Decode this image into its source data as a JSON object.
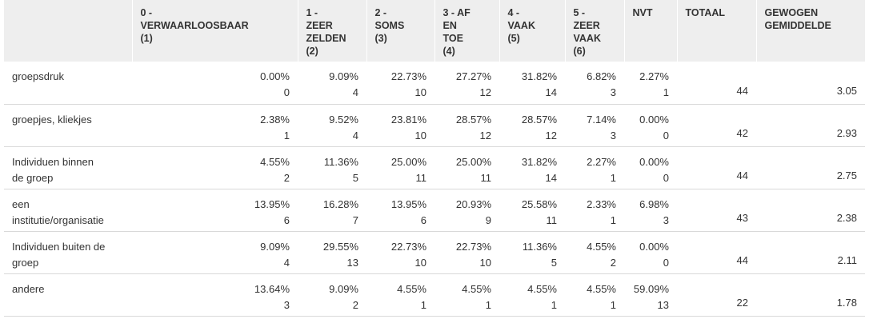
{
  "table": {
    "headers": [
      {
        "lines": [
          ""
        ]
      },
      {
        "lines": [
          "0 -",
          "VERWAARLOOSBAAR",
          "(1)"
        ]
      },
      {
        "lines": [
          "1 -",
          "ZEER",
          "ZELDEN",
          "(2)"
        ]
      },
      {
        "lines": [
          "2 -",
          "SOMS",
          "(3)"
        ]
      },
      {
        "lines": [
          "3 - AF",
          "EN",
          "TOE",
          "(4)"
        ]
      },
      {
        "lines": [
          "4 -",
          "VAAK",
          "(5)"
        ]
      },
      {
        "lines": [
          "5 -",
          "ZEER",
          "VAAK",
          "(6)"
        ]
      },
      {
        "lines": [
          "NVT"
        ]
      },
      {
        "lines": [
          "TOTAAL"
        ]
      },
      {
        "lines": [
          "GEWOGEN",
          "GEMIDDELDE"
        ]
      }
    ],
    "rows": [
      {
        "label": [
          "groepsdruk"
        ],
        "cells": [
          {
            "pct": "0.00%",
            "count": "0"
          },
          {
            "pct": "9.09%",
            "count": "4"
          },
          {
            "pct": "22.73%",
            "count": "10"
          },
          {
            "pct": "27.27%",
            "count": "12"
          },
          {
            "pct": "31.82%",
            "count": "14"
          },
          {
            "pct": "6.82%",
            "count": "3"
          },
          {
            "pct": "2.27%",
            "count": "1"
          }
        ],
        "total": "44",
        "average": "3.05"
      },
      {
        "label": [
          "groepjes, kliekjes"
        ],
        "cells": [
          {
            "pct": "2.38%",
            "count": "1"
          },
          {
            "pct": "9.52%",
            "count": "4"
          },
          {
            "pct": "23.81%",
            "count": "10"
          },
          {
            "pct": "28.57%",
            "count": "12"
          },
          {
            "pct": "28.57%",
            "count": "12"
          },
          {
            "pct": "7.14%",
            "count": "3"
          },
          {
            "pct": "0.00%",
            "count": "0"
          }
        ],
        "total": "42",
        "average": "2.93"
      },
      {
        "label": [
          "Individuen binnen",
          "de groep"
        ],
        "cells": [
          {
            "pct": "4.55%",
            "count": "2"
          },
          {
            "pct": "11.36%",
            "count": "5"
          },
          {
            "pct": "25.00%",
            "count": "11"
          },
          {
            "pct": "25.00%",
            "count": "11"
          },
          {
            "pct": "31.82%",
            "count": "14"
          },
          {
            "pct": "2.27%",
            "count": "1"
          },
          {
            "pct": "0.00%",
            "count": "0"
          }
        ],
        "total": "44",
        "average": "2.75"
      },
      {
        "label": [
          "een",
          "institutie/organisatie"
        ],
        "cells": [
          {
            "pct": "13.95%",
            "count": "6"
          },
          {
            "pct": "16.28%",
            "count": "7"
          },
          {
            "pct": "13.95%",
            "count": "6"
          },
          {
            "pct": "20.93%",
            "count": "9"
          },
          {
            "pct": "25.58%",
            "count": "11"
          },
          {
            "pct": "2.33%",
            "count": "1"
          },
          {
            "pct": "6.98%",
            "count": "3"
          }
        ],
        "total": "43",
        "average": "2.38"
      },
      {
        "label": [
          "Individuen buiten de",
          "groep"
        ],
        "cells": [
          {
            "pct": "9.09%",
            "count": "4"
          },
          {
            "pct": "29.55%",
            "count": "13"
          },
          {
            "pct": "22.73%",
            "count": "10"
          },
          {
            "pct": "22.73%",
            "count": "10"
          },
          {
            "pct": "11.36%",
            "count": "5"
          },
          {
            "pct": "4.55%",
            "count": "2"
          },
          {
            "pct": "0.00%",
            "count": "0"
          }
        ],
        "total": "44",
        "average": "2.11"
      },
      {
        "label": [
          "andere"
        ],
        "cells": [
          {
            "pct": "13.64%",
            "count": "3"
          },
          {
            "pct": "9.09%",
            "count": "2"
          },
          {
            "pct": "4.55%",
            "count": "1"
          },
          {
            "pct": "4.55%",
            "count": "1"
          },
          {
            "pct": "4.55%",
            "count": "1"
          },
          {
            "pct": "4.55%",
            "count": "1"
          },
          {
            "pct": "59.09%",
            "count": "13"
          }
        ],
        "total": "22",
        "average": "1.78"
      }
    ]
  }
}
